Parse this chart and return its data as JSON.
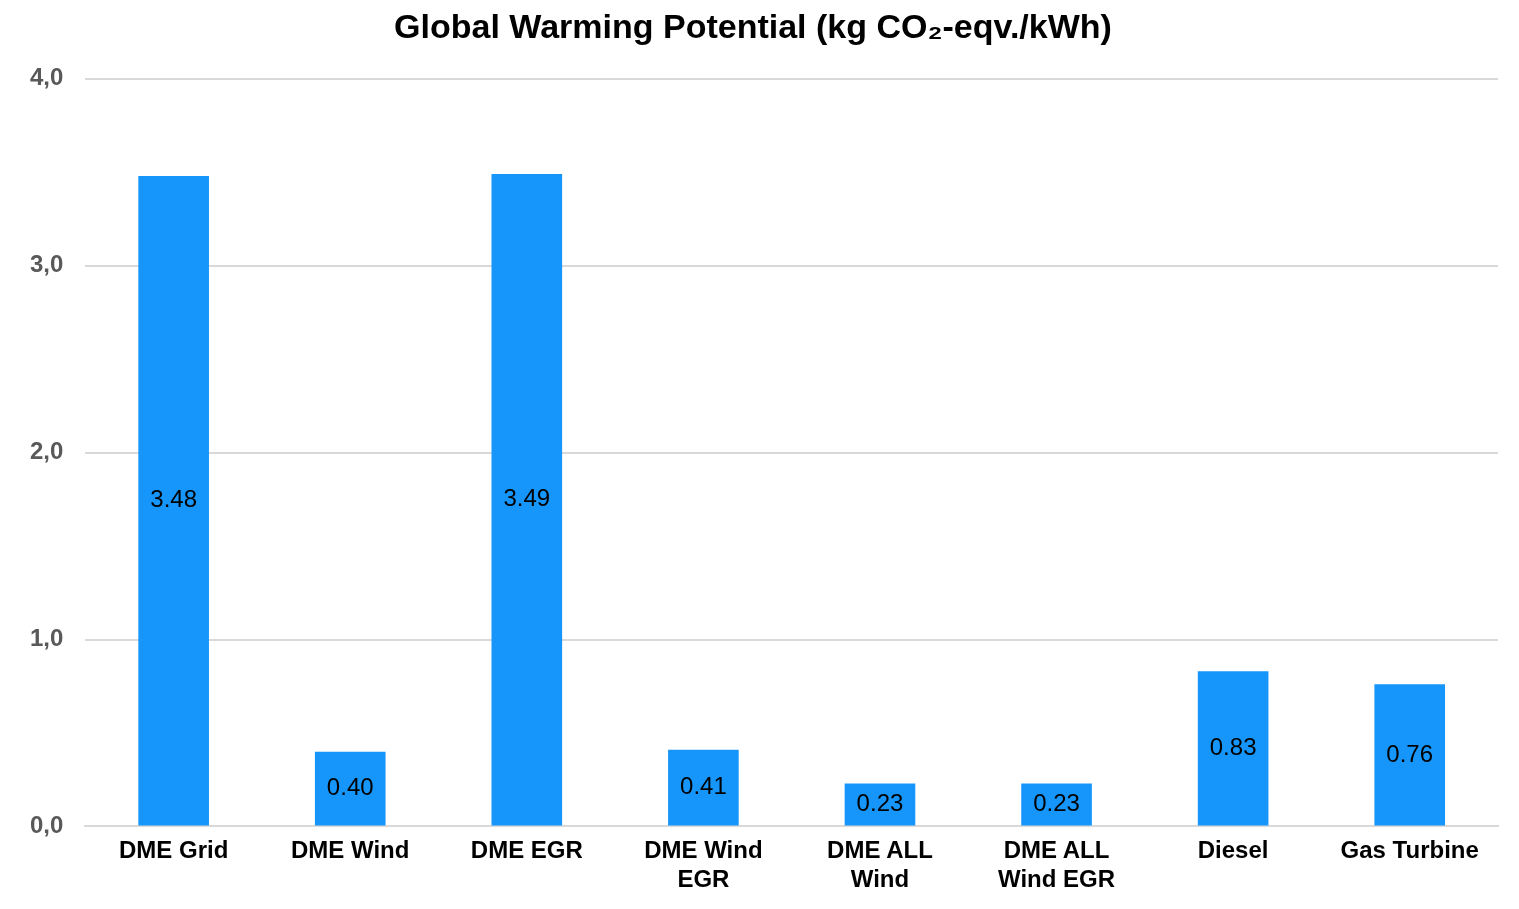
{
  "chart_data": {
    "type": "bar",
    "title": "Global Warming Potential (kg CO₂-eqv./kWh)",
    "categories": [
      "DME Grid",
      "DME Wind",
      "DME EGR",
      "DME Wind EGR",
      "DME ALL Wind",
      "DME ALL Wind EGR",
      "Diesel",
      "Gas Turbine"
    ],
    "values": [
      3.48,
      0.4,
      3.49,
      0.41,
      0.23,
      0.23,
      0.83,
      0.76
    ],
    "value_labels": [
      "3.48",
      "0.40",
      "3.49",
      "0.41",
      "0.23",
      "0.23",
      "0.83",
      "0.76"
    ],
    "color": "#1696fb",
    "ylim": [
      0,
      4
    ],
    "yticks": [
      {
        "value": 0,
        "label": "0,0"
      },
      {
        "value": 1,
        "label": "1,0"
      },
      {
        "value": 2,
        "label": "2,0"
      },
      {
        "value": 3,
        "label": "3,0"
      },
      {
        "value": 4,
        "label": "4,0"
      }
    ],
    "grid": "y",
    "legend": false
  }
}
